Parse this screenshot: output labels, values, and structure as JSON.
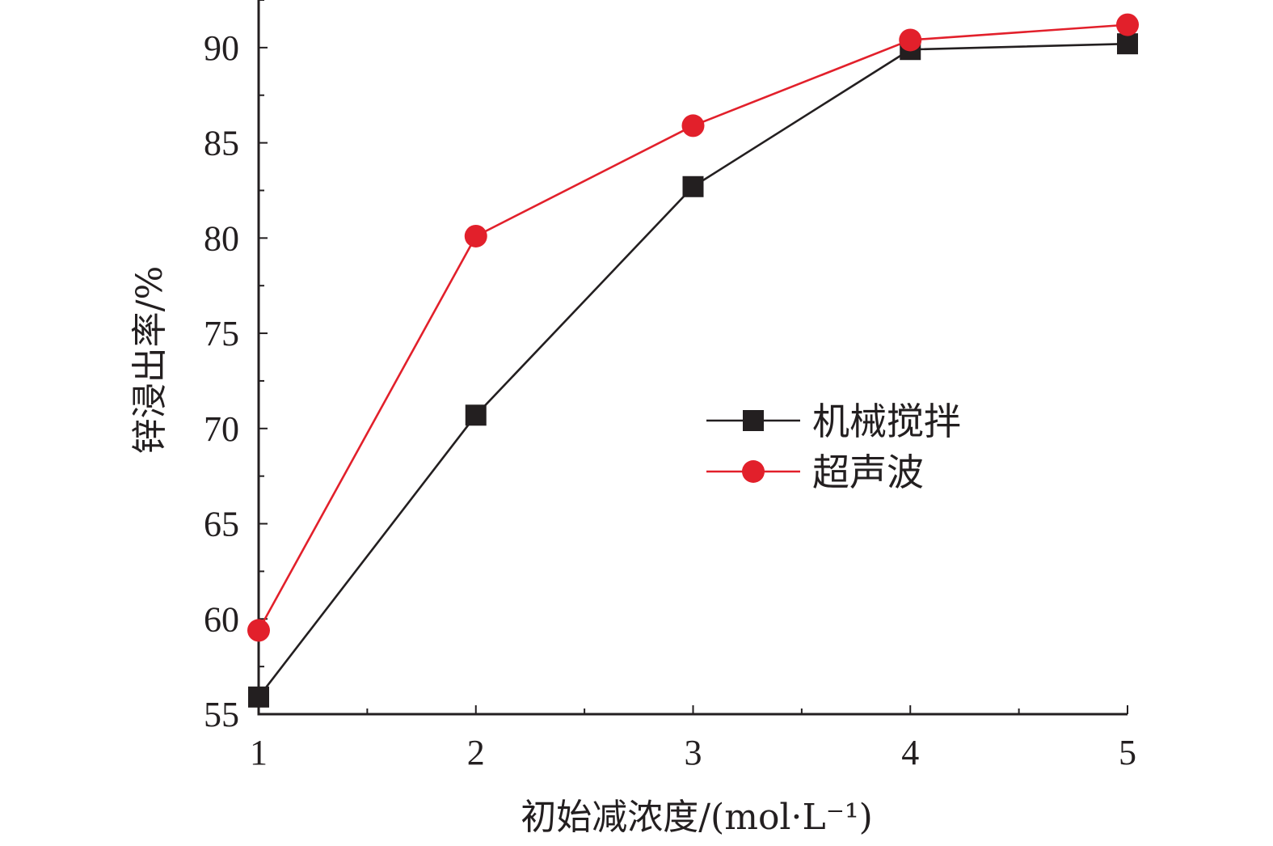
{
  "chart_data": {
    "type": "line",
    "xlabel": "初始减浓度/(mol·L⁻¹)",
    "ylabel": "锌浸出率/%",
    "x": [
      1,
      2,
      3,
      4,
      5
    ],
    "xlim": [
      1,
      5
    ],
    "ylim": [
      55,
      92.5
    ],
    "xticks": [
      "1",
      "2",
      "3",
      "4",
      "5"
    ],
    "yticks": [
      "55",
      "60",
      "65",
      "70",
      "75",
      "80",
      "85",
      "90"
    ],
    "grid": false,
    "legend_position": "center-right",
    "series": [
      {
        "name": "机械搅拌",
        "values": [
          55.9,
          70.7,
          82.7,
          89.9,
          90.2
        ],
        "color": "#231f20",
        "marker": "square"
      },
      {
        "name": "超声波",
        "values": [
          59.4,
          80.1,
          85.9,
          90.4,
          91.2
        ],
        "color": "#e2202b",
        "marker": "circle"
      }
    ]
  }
}
